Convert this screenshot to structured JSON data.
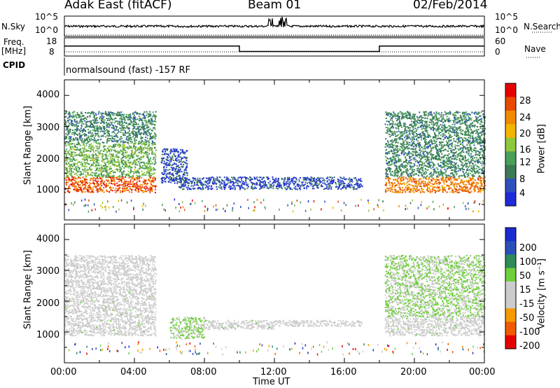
{
  "header": {
    "station": "Adak East (fitACF)",
    "beam": "Beam 01",
    "date": "02/Feb/2014"
  },
  "panels": {
    "noise": {
      "left_label": "N.Sky",
      "right_label": "N.Search",
      "left_ticks": [
        "10^5",
        "10^0"
      ],
      "right_ticks": [
        "10^5",
        "10^0"
      ]
    },
    "freq": {
      "left_label": "Freq.",
      "left_unit": "[MHz]",
      "right_label": "Nave",
      "left_ticks": [
        "18",
        "8"
      ],
      "right_ticks": [
        "60",
        "0"
      ]
    },
    "cpid": {
      "label": "CPID",
      "text": "normalsound (fast) -157 RF"
    },
    "power": {
      "ylabel": "Slant Range [km]",
      "cbar_label": "Power [dB]",
      "cbar_ticks": [
        "28",
        "24",
        "20",
        "16",
        "12",
        "8",
        "4"
      ]
    },
    "velocity": {
      "ylabel": "Slant Range [km]",
      "cbar_label": "Velocity [m s⁻¹]",
      "cbar_ticks": [
        "200",
        "100",
        "50",
        "15",
        "-15",
        "-50",
        "-100",
        "-200"
      ]
    }
  },
  "xaxis": {
    "title": "Time UT",
    "ticks": [
      "00:00",
      "04:00",
      "08:00",
      "12:00",
      "16:00",
      "20:00",
      "00:00"
    ]
  },
  "chart_data": [
    {
      "type": "line",
      "title": "N.Sky",
      "x": [
        0,
        24
      ],
      "description_values": "noise level near 10^2 throughout",
      "ylim_exp": [
        0,
        5
      ],
      "series": [
        {
          "name": "N.Sky",
          "values": [
            2,
            2
          ]
        }
      ]
    },
    {
      "type": "line",
      "title": "Freq.",
      "xlabel": "Time UT",
      "ylim": [
        8,
        18
      ],
      "series": [
        {
          "name": "Freq.",
          "x": [
            0,
            10,
            10,
            18,
            18,
            24
          ],
          "values": [
            13.5,
            13.5,
            10.5,
            10.5,
            13.5,
            13.5
          ]
        },
        {
          "name": "Nave",
          "x": [
            0,
            24
          ],
          "values": [
            16,
            16
          ]
        }
      ]
    },
    {
      "type": "heatmap",
      "title": "Power [dB]",
      "ylabel": "Slant Range [km]",
      "xlabel": "Time UT",
      "xlim": [
        0,
        24
      ],
      "ylim": [
        0,
        4500
      ],
      "yticks": [
        1000,
        2000,
        3000,
        4000
      ],
      "colorbar": {
        "min": 0,
        "max": 32,
        "ticks": [
          4,
          8,
          12,
          16,
          20,
          24,
          28
        ]
      },
      "regions": [
        {
          "t": [
            0,
            5.2
          ],
          "r": [
            900,
            1400
          ],
          "value": 26
        },
        {
          "t": [
            0,
            5.2
          ],
          "r": [
            1400,
            2500
          ],
          "value": 14
        },
        {
          "t": [
            0,
            5.2
          ],
          "r": [
            2500,
            3500
          ],
          "value": 10
        },
        {
          "t": [
            5.5,
            7
          ],
          "r": [
            1200,
            2300
          ],
          "value": 5
        },
        {
          "t": [
            6.5,
            17
          ],
          "r": [
            1000,
            1400
          ],
          "value": 5
        },
        {
          "t": [
            18.3,
            24
          ],
          "r": [
            900,
            1400
          ],
          "value": 24
        },
        {
          "t": [
            18.3,
            24
          ],
          "r": [
            1400,
            3500
          ],
          "value": 10
        }
      ]
    },
    {
      "type": "heatmap",
      "title": "Velocity [m s⁻¹]",
      "ylabel": "Slant Range [km]",
      "xlabel": "Time UT",
      "xlim": [
        0,
        24
      ],
      "ylim": [
        0,
        4500
      ],
      "yticks": [
        1000,
        2000,
        3000,
        4000
      ],
      "colorbar": {
        "min": -250,
        "max": 250,
        "ticks": [
          -200,
          -100,
          -50,
          -15,
          15,
          50,
          100,
          200
        ]
      },
      "regions": [
        {
          "t": [
            0,
            5.2
          ],
          "r": [
            900,
            2300
          ],
          "value": 0
        },
        {
          "t": [
            0,
            5.2
          ],
          "r": [
            2300,
            3500
          ],
          "value": -40
        },
        {
          "t": [
            6,
            8
          ],
          "r": [
            800,
            1500
          ],
          "value": 30
        },
        {
          "t": [
            8,
            12
          ],
          "r": [
            1100,
            1400
          ],
          "value": 0
        },
        {
          "t": [
            12,
            17
          ],
          "r": [
            1200,
            1400
          ],
          "value": -50
        },
        {
          "t": [
            18.3,
            24
          ],
          "r": [
            900,
            1500
          ],
          "value": 0
        },
        {
          "t": [
            18.3,
            24
          ],
          "r": [
            1500,
            3500
          ],
          "value": 30
        }
      ]
    }
  ]
}
